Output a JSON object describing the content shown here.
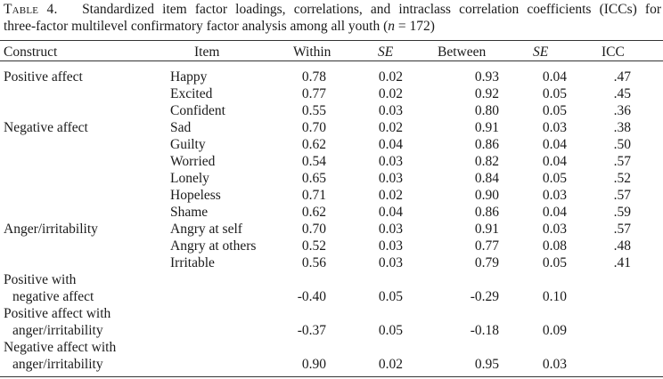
{
  "caption": {
    "label": "Table 4.",
    "line1": "Standardized item factor loadings, correlations, and intraclass correlation coefficients (ICCs) for",
    "line2_pre": "three-factor multilevel confirmatory factor analysis among all youth (",
    "line2_n": "n",
    "line2_post": " = 172)"
  },
  "headers": {
    "construct": "Construct",
    "item": "Item",
    "within": "Within",
    "se1": "SE",
    "between": "Between",
    "se2": "SE",
    "icc": "ICC"
  },
  "item_rows": [
    {
      "construct": "Positive affect",
      "item": "Happy",
      "within": "0.78",
      "se1": "0.02",
      "between": "0.93",
      "se2": "0.04",
      "icc": ".47"
    },
    {
      "construct": "",
      "item": "Excited",
      "within": "0.77",
      "se1": "0.02",
      "between": "0.92",
      "se2": "0.05",
      "icc": ".45"
    },
    {
      "construct": "",
      "item": "Confident",
      "within": "0.55",
      "se1": "0.03",
      "between": "0.80",
      "se2": "0.05",
      "icc": ".36"
    },
    {
      "construct": "Negative affect",
      "item": "Sad",
      "within": "0.70",
      "se1": "0.02",
      "between": "0.91",
      "se2": "0.03",
      "icc": ".38"
    },
    {
      "construct": "",
      "item": "Guilty",
      "within": "0.62",
      "se1": "0.04",
      "between": "0.86",
      "se2": "0.04",
      "icc": ".50"
    },
    {
      "construct": "",
      "item": "Worried",
      "within": "0.54",
      "se1": "0.03",
      "between": "0.82",
      "se2": "0.04",
      "icc": ".57"
    },
    {
      "construct": "",
      "item": "Lonely",
      "within": "0.65",
      "se1": "0.03",
      "between": "0.84",
      "se2": "0.05",
      "icc": ".52"
    },
    {
      "construct": "",
      "item": "Hopeless",
      "within": "0.71",
      "se1": "0.02",
      "between": "0.90",
      "se2": "0.03",
      "icc": ".57"
    },
    {
      "construct": "",
      "item": "Shame",
      "within": "0.62",
      "se1": "0.04",
      "between": "0.86",
      "se2": "0.04",
      "icc": ".59"
    },
    {
      "construct": "Anger/irritability",
      "item": "Angry at self",
      "within": "0.70",
      "se1": "0.03",
      "between": "0.91",
      "se2": "0.03",
      "icc": ".57"
    },
    {
      "construct": "",
      "item": "Angry at others",
      "within": "0.52",
      "se1": "0.03",
      "between": "0.77",
      "se2": "0.08",
      "icc": ".48"
    },
    {
      "construct": "",
      "item": "Irritable",
      "within": "0.56",
      "se1": "0.03",
      "between": "0.79",
      "se2": "0.05",
      "icc": ".41"
    }
  ],
  "correlation_rows": [
    {
      "line1": "Positive with",
      "line2": "negative affect",
      "within": "-0.40",
      "se1": "0.05",
      "between": "-0.29",
      "se2": "0.10"
    },
    {
      "line1": "Positive affect with",
      "line2": "anger/irritability",
      "within": "-0.37",
      "se1": "0.05",
      "between": "-0.18",
      "se2": "0.09"
    },
    {
      "line1": "Negative affect with",
      "line2": "anger/irritability",
      "within": "0.90",
      "se1": "0.02",
      "between": "0.95",
      "se2": "0.03"
    }
  ]
}
